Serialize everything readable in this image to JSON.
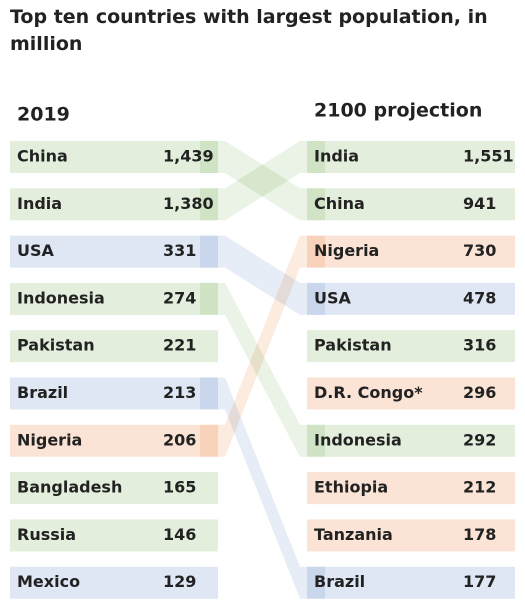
{
  "chart_data": {
    "type": "ranking",
    "title": "Top ten countries with largest population, in million",
    "columns": [
      {
        "label": "2019",
        "categories": [
          "China",
          "India",
          "USA",
          "Indonesia",
          "Pakistan",
          "Brazil",
          "Nigeria",
          "Bangladesh",
          "Russia",
          "Mexico"
        ],
        "values": [
          1439,
          1380,
          331,
          274,
          221,
          213,
          206,
          165,
          146,
          129
        ],
        "value_labels": [
          "1,439",
          "1,380",
          "331",
          "274",
          "221",
          "213",
          "206",
          "165",
          "146",
          "129"
        ],
        "colors": [
          "#e3efdc",
          "#e3efdc",
          "#dfe7f4",
          "#e3efdc",
          "#e3efdc",
          "#dfe7f4",
          "#fbe4d5",
          "#e3efdc",
          "#e3efdc",
          "#dfe7f4"
        ]
      },
      {
        "label": "2100 projection",
        "categories": [
          "India",
          "China",
          "Nigeria",
          "USA",
          "Pakistan",
          "D.R. Congo*",
          "Indonesia",
          "Ethiopia",
          "Tanzania",
          "Brazil"
        ],
        "values": [
          1551,
          941,
          730,
          478,
          316,
          296,
          292,
          212,
          178,
          177
        ],
        "value_labels": [
          "1,551",
          "941",
          "730",
          "478",
          "316",
          "296",
          "292",
          "212",
          "178",
          "177"
        ],
        "colors": [
          "#e3efdc",
          "#e3efdc",
          "#fbe4d5",
          "#dfe7f4",
          "#e3efdc",
          "#fbe4d5",
          "#e3efdc",
          "#fbe4d5",
          "#fbe4d5",
          "#dfe7f4"
        ]
      }
    ]
  }
}
